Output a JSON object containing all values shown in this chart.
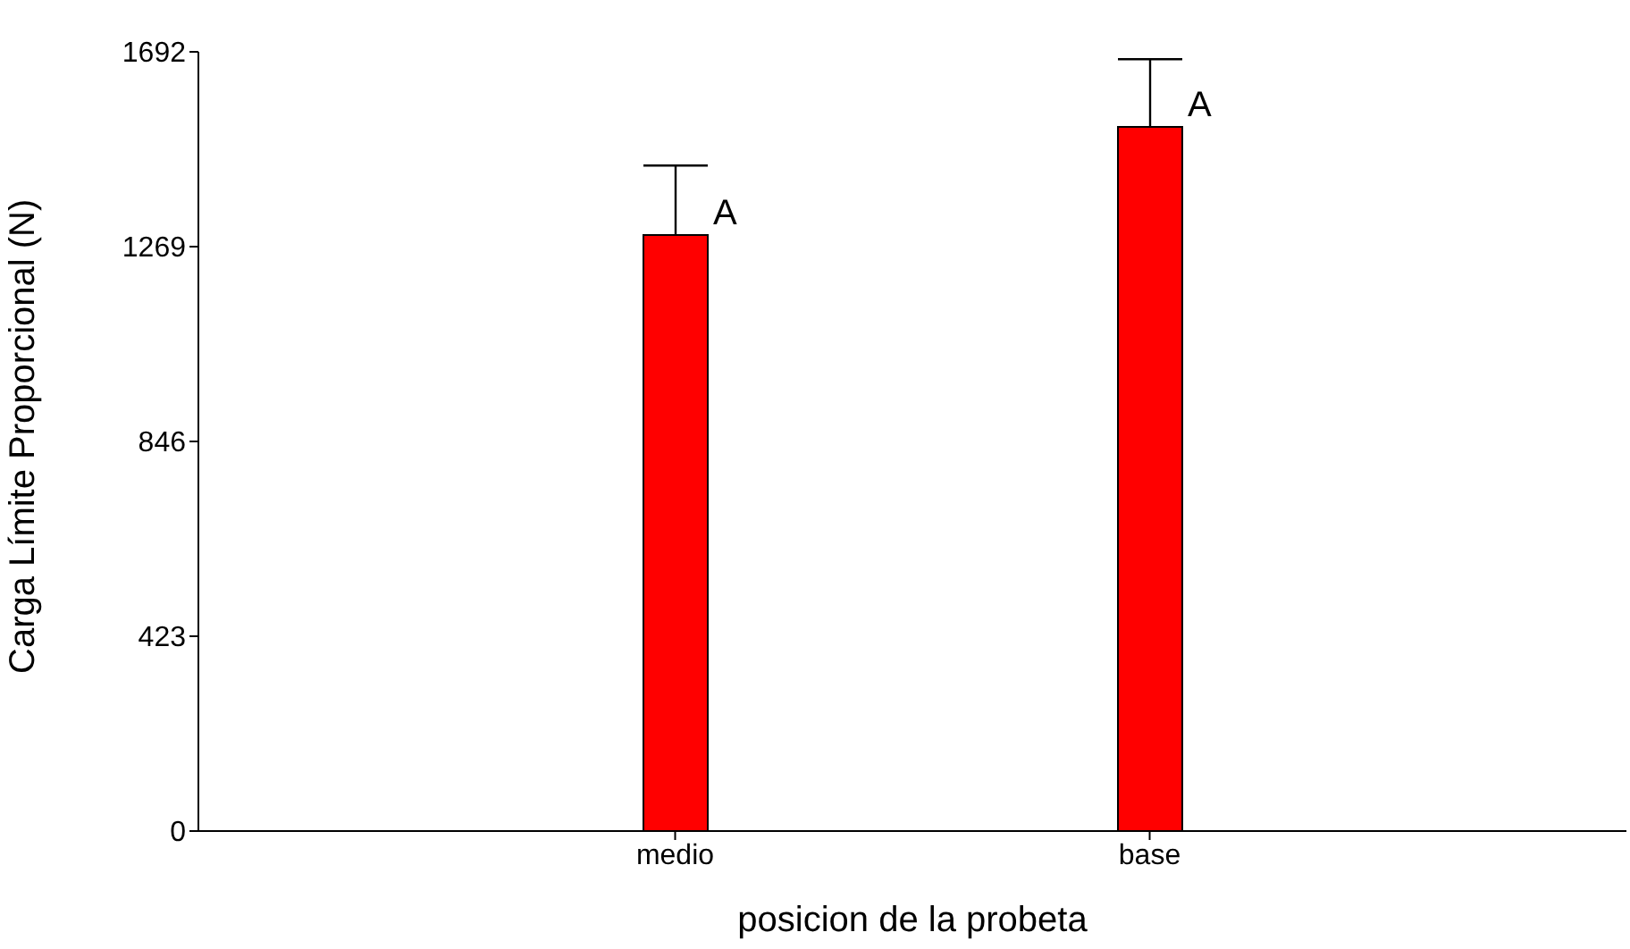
{
  "chart_data": {
    "type": "bar",
    "xlabel": "posicion de la probeta",
    "ylabel": "Carga Límite Proporcional (N)",
    "categories": [
      "medio",
      "base"
    ],
    "values": [
      1294,
      1529
    ],
    "color": "#ff0000",
    "errors": [
      [
        1294,
        1445
      ],
      [
        1529,
        1676
      ]
    ],
    "ylim": [
      0,
      1692
    ],
    "yticks": [
      0,
      423,
      846,
      1269,
      1692
    ],
    "annotations": [
      {
        "text": "A",
        "x": "medio",
        "y": 1294
      },
      {
        "text": "A",
        "x": "base",
        "y": 1529
      }
    ]
  }
}
